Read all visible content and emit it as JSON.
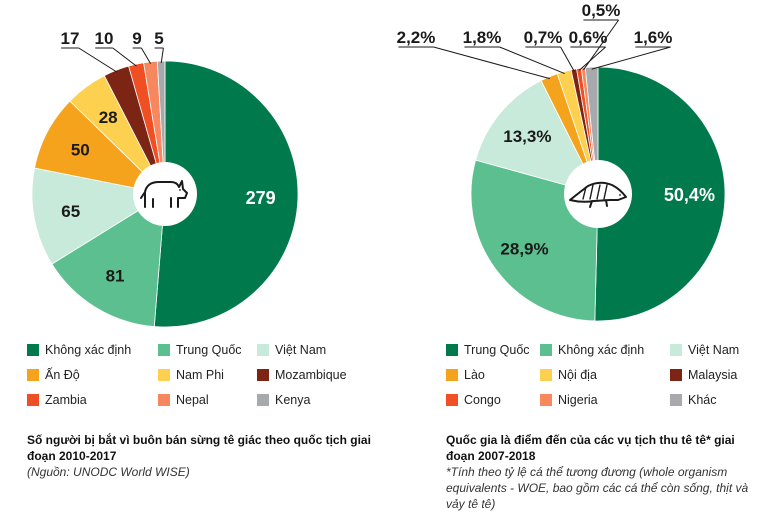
{
  "chart_data": [
    {
      "type": "pie",
      "title": "Số người bị bắt vì buôn bán sừng tê giác theo quốc tịch giai đoạn 2010-2017",
      "source": "(Nguồn: UNODC World WISE)",
      "icon": "rhino-icon",
      "slices": [
        {
          "name": "Không xác định",
          "value": 279,
          "label": "279",
          "color": "#007a4d"
        },
        {
          "name": "Trung Quốc",
          "value": 81,
          "label": "81",
          "color": "#5cbf8f"
        },
        {
          "name": "Việt Nam",
          "value": 65,
          "label": "65",
          "color": "#c8eadb"
        },
        {
          "name": "Ấn Độ",
          "value": 50,
          "label": "50",
          "color": "#f5a21d"
        },
        {
          "name": "Nam Phi",
          "value": 28,
          "label": "28",
          "color": "#fdd04f"
        },
        {
          "name": "Mozambique",
          "value": 17,
          "label": "17",
          "color": "#7d2514"
        },
        {
          "name": "Zambia",
          "value": 10,
          "label": "10",
          "color": "#f04e23"
        },
        {
          "name": "Nepal",
          "value": 9,
          "label": "9",
          "color": "#f7875f"
        },
        {
          "name": "Kenya",
          "value": 5,
          "label": "5",
          "color": "#a7a9ac"
        }
      ]
    },
    {
      "type": "pie",
      "title": "Quốc gia là điểm đến của các vụ tịch thu tê tê* giai đoạn 2007-2018",
      "note": "*Tính theo tỷ lệ cá thể tương đương (whole organism equivalents - WOE, bao gồm các cá thể còn sống, thịt và vảy tê tê)",
      "icon": "pangolin-icon",
      "slices": [
        {
          "name": "Trung Quốc",
          "value": 50.4,
          "label": "50,4%",
          "color": "#007a4d"
        },
        {
          "name": "Không xác định",
          "value": 28.9,
          "label": "28,9%",
          "color": "#5cbf8f"
        },
        {
          "name": "Việt Nam",
          "value": 13.3,
          "label": "13,3%",
          "color": "#c8eadb"
        },
        {
          "name": "Lào",
          "value": 2.2,
          "label": "2,2%",
          "color": "#f5a21d"
        },
        {
          "name": "Nội địa",
          "value": 1.8,
          "label": "1,8%",
          "color": "#fdd04f"
        },
        {
          "name": "Malaysia",
          "value": 0.7,
          "label": "0,7%",
          "color": "#7d2514"
        },
        {
          "name": "Congo",
          "value": 0.6,
          "label": "0,6%",
          "color": "#f04e23"
        },
        {
          "name": "Nigeria",
          "value": 0.5,
          "label": "0,5%",
          "color": "#f7875f"
        },
        {
          "name": "Khác",
          "value": 1.6,
          "label": "1,6%",
          "color": "#a7a9ac"
        }
      ]
    }
  ]
}
